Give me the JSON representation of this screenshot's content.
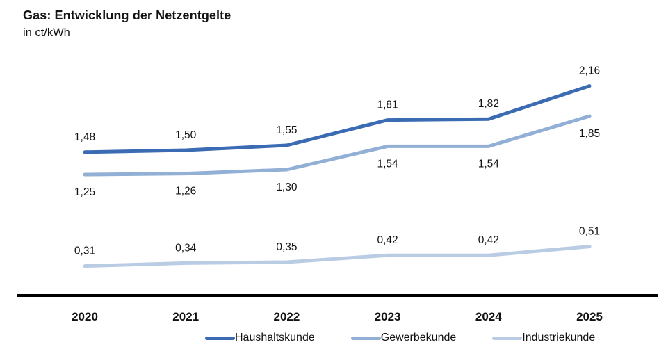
{
  "header": {
    "title": "Gas: Entwicklung der Netzentgelte",
    "subtitle": "in ct/kWh"
  },
  "colors": {
    "axis": "#000000",
    "text": "#121212",
    "haushaltskunde": "#3B6BB3",
    "gewerbekunde": "#92AFD5",
    "industriekunde": "#B9CCE4"
  },
  "chart_data": {
    "type": "line",
    "title": "Gas: Entwicklung der Netzentgelte",
    "ylabel": "ct/kWh",
    "xlabel": "",
    "categories": [
      "2020",
      "2021",
      "2022",
      "2023",
      "2024",
      "2025"
    ],
    "series": [
      {
        "name": "Haushaltskunde",
        "color": "#3B6BB3",
        "values": [
          1.48,
          1.5,
          1.55,
          1.81,
          1.82,
          2.16
        ],
        "labels": [
          "1,48",
          "1,50",
          "1,55",
          "1,81",
          "1,82",
          "2,16"
        ],
        "label_position": "above"
      },
      {
        "name": "Gewerbekunde",
        "color": "#92AFD5",
        "values": [
          1.25,
          1.26,
          1.3,
          1.54,
          1.54,
          1.85
        ],
        "labels": [
          "1,25",
          "1,26",
          "1,30",
          "1,54",
          "1,54",
          "1,85"
        ],
        "label_position": "below"
      },
      {
        "name": "Industriekunde",
        "color": "#B9CCE4",
        "values": [
          0.31,
          0.34,
          0.35,
          0.42,
          0.42,
          0.51
        ],
        "labels": [
          "0,31",
          "0,34",
          "0,35",
          "0,42",
          "0,42",
          "0,51"
        ],
        "label_position": "above"
      }
    ],
    "ylim": [
      0,
      2.9
    ],
    "grid": false,
    "decimal_separator": ",",
    "legend_position": "bottom"
  }
}
